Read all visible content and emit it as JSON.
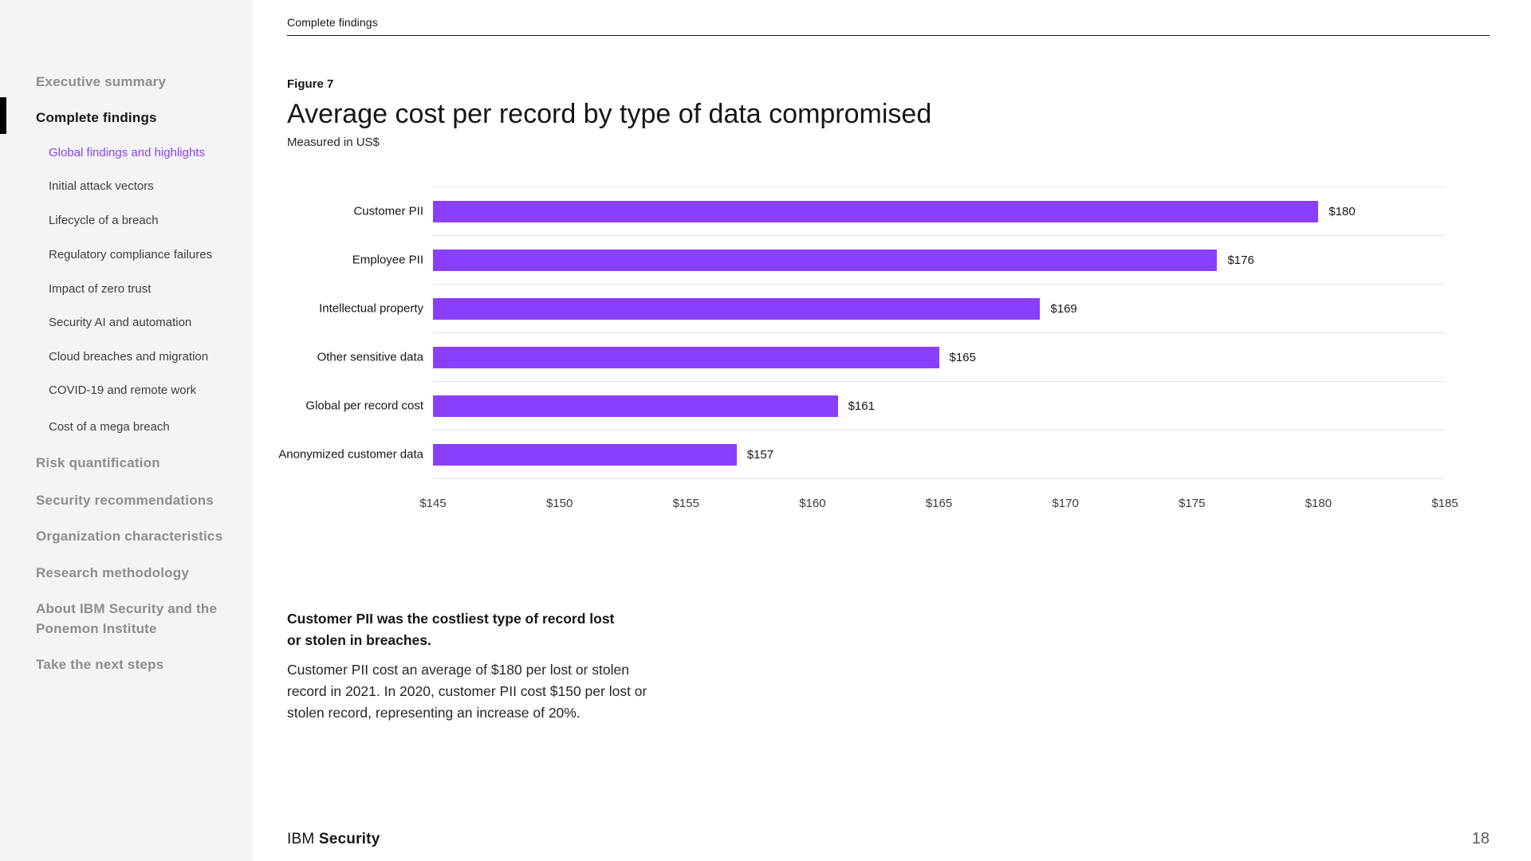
{
  "sidebar": {
    "items": [
      {
        "label": "Executive summary",
        "level": "top",
        "active": false
      },
      {
        "label": "Complete findings",
        "level": "top",
        "active": true
      },
      {
        "label": "Global findings and highlights",
        "level": "sub",
        "active": true
      },
      {
        "label": "Initial attack vectors",
        "level": "sub",
        "active": false
      },
      {
        "label": "Lifecycle of a breach",
        "level": "sub",
        "active": false
      },
      {
        "label": "Regulatory compliance failures",
        "level": "sub",
        "active": false
      },
      {
        "label": "Impact of zero trust",
        "level": "sub",
        "active": false
      },
      {
        "label": "Security AI and automation",
        "level": "sub",
        "active": false
      },
      {
        "label": "Cloud breaches and migration",
        "level": "sub",
        "active": false
      },
      {
        "label": "COVID-19 and remote work",
        "level": "sub",
        "active": false
      },
      {
        "label": "Cost of a mega breach",
        "level": "sub",
        "active": false
      },
      {
        "label": "Risk quantification",
        "level": "top",
        "active": false
      },
      {
        "label": "Security recommendations",
        "level": "top",
        "active": false
      },
      {
        "label": "Organization characteristics",
        "level": "top",
        "active": false
      },
      {
        "label": "Research methodology",
        "level": "top",
        "active": false
      },
      {
        "label": "About IBM Security and the Ponemon Institute",
        "level": "top",
        "active": false
      },
      {
        "label": "Take the next steps",
        "level": "top",
        "active": false
      }
    ]
  },
  "header": {
    "section_label": "Complete findings"
  },
  "figure": {
    "label": "Figure 7",
    "title": "Average cost per record by type of data compromised",
    "subtitle": "Measured in US$"
  },
  "chart_data": {
    "type": "bar",
    "orientation": "horizontal",
    "title": "Average cost per record by type of data compromised",
    "subtitle": "Measured in US$",
    "categories": [
      "Customer PII",
      "Employee PII",
      "Intellectual property",
      "Other sensitive data",
      "Global per record cost",
      "Anonymized customer data"
    ],
    "values": [
      180,
      176,
      169,
      165,
      161,
      157
    ],
    "value_labels": [
      "$180",
      "$176",
      "$169",
      "$165",
      "$161",
      "$157"
    ],
    "xlim": [
      145,
      185
    ],
    "x_ticks": [
      "$145",
      "$150",
      "$155",
      "$160",
      "$165",
      "$170",
      "$175",
      "$180",
      "$185"
    ],
    "bar_color": "#8a3ffc",
    "grid": "horizontal row separators only",
    "legend": "none"
  },
  "callout": {
    "heading": "Customer PII was the costliest type of record lost or stolen in breaches.",
    "body": "Customer PII cost an average of $180 per lost or stolen record in 2021. In 2020, customer PII cost $150 per lost or stolen record, representing an increase of 20%."
  },
  "footer": {
    "brand_regular": "IBM",
    "brand_bold": "Security",
    "page_number": "18"
  }
}
